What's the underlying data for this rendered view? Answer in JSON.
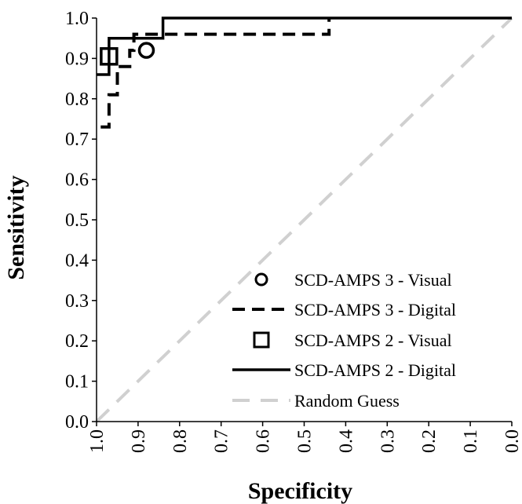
{
  "chart_data": {
    "type": "line",
    "title": "",
    "xlabel": "Specificity",
    "ylabel": "Sensitivity",
    "x_reversed": true,
    "xlim": [
      1.0,
      0.0
    ],
    "ylim": [
      0.0,
      1.0
    ],
    "x_ticks": [
      "1.0",
      "0.9",
      "0.8",
      "0.7",
      "0.6",
      "0.5",
      "0.4",
      "0.3",
      "0.2",
      "0.1",
      "0.0"
    ],
    "y_ticks": [
      "0.0",
      "0.1",
      "0.2",
      "0.3",
      "0.4",
      "0.5",
      "0.6",
      "0.7",
      "0.8",
      "0.9",
      "1.0"
    ],
    "grid": false,
    "legend_position": "bottom-right",
    "series": [
      {
        "name": "SCD-AMPS 3 - Visual",
        "style": "point-circle",
        "points": [
          {
            "x": 0.88,
            "y": 0.92
          }
        ]
      },
      {
        "name": "SCD-AMPS 3 - Digital",
        "style": "dashed",
        "points": [
          {
            "x": 0.99,
            "y": 0.73
          },
          {
            "x": 0.97,
            "y": 0.73
          },
          {
            "x": 0.97,
            "y": 0.81
          },
          {
            "x": 0.95,
            "y": 0.81
          },
          {
            "x": 0.95,
            "y": 0.88
          },
          {
            "x": 0.92,
            "y": 0.88
          },
          {
            "x": 0.92,
            "y": 0.92
          },
          {
            "x": 0.91,
            "y": 0.92
          },
          {
            "x": 0.91,
            "y": 0.96
          },
          {
            "x": 0.44,
            "y": 0.96
          },
          {
            "x": 0.44,
            "y": 1.0
          }
        ]
      },
      {
        "name": "SCD-AMPS 2 - Visual",
        "style": "point-square",
        "points": [
          {
            "x": 0.97,
            "y": 0.905
          }
        ]
      },
      {
        "name": "SCD-AMPS 2 - Digital",
        "style": "solid",
        "points": [
          {
            "x": 1.0,
            "y": 0.86
          },
          {
            "x": 0.97,
            "y": 0.86
          },
          {
            "x": 0.97,
            "y": 0.95
          },
          {
            "x": 0.84,
            "y": 0.95
          },
          {
            "x": 0.84,
            "y": 1.0
          },
          {
            "x": 0.0,
            "y": 1.0
          }
        ]
      },
      {
        "name": "Random Guess",
        "style": "dashed-gray",
        "points": [
          {
            "x": 1.0,
            "y": 0.0
          },
          {
            "x": 0.0,
            "y": 1.0
          }
        ]
      }
    ],
    "colors": {
      "series": "#000000",
      "random_guess": "#d0d0d0"
    }
  }
}
